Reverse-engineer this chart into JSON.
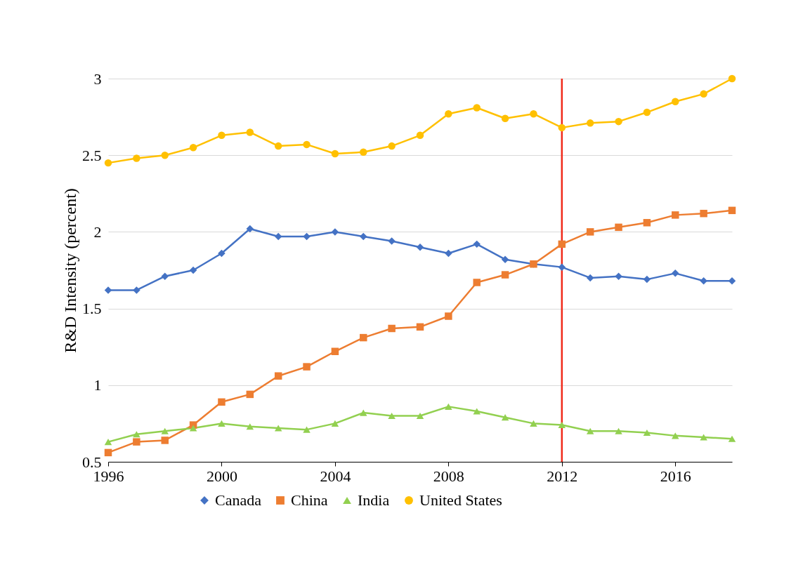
{
  "chart_data": {
    "type": "line",
    "ylabel": "R&D Intensity (percent)",
    "x": [
      1996,
      1997,
      1998,
      1999,
      2000,
      2001,
      2002,
      2003,
      2004,
      2005,
      2006,
      2007,
      2008,
      2009,
      2010,
      2011,
      2012,
      2013,
      2014,
      2015,
      2016,
      2017,
      2018
    ],
    "series": [
      {
        "name": "Canada",
        "color": "#4472c4",
        "marker": "diamond",
        "values": [
          1.62,
          1.62,
          1.71,
          1.75,
          1.86,
          2.02,
          1.97,
          1.97,
          2.0,
          1.97,
          1.94,
          1.9,
          1.86,
          1.92,
          1.82,
          1.79,
          1.77,
          1.7,
          1.71,
          1.69,
          1.73,
          1.68,
          1.68
        ]
      },
      {
        "name": "China",
        "color": "#ed7d31",
        "marker": "square",
        "values": [
          0.56,
          0.63,
          0.64,
          0.74,
          0.89,
          0.94,
          1.06,
          1.12,
          1.22,
          1.31,
          1.37,
          1.38,
          1.45,
          1.67,
          1.72,
          1.79,
          1.92,
          2.0,
          2.03,
          2.06,
          2.11,
          2.12,
          2.14
        ]
      },
      {
        "name": "India",
        "color": "#92d050",
        "marker": "triangle",
        "values": [
          0.63,
          0.68,
          0.7,
          0.72,
          0.75,
          0.73,
          0.72,
          0.71,
          0.75,
          0.82,
          0.8,
          0.8,
          0.86,
          0.83,
          0.79,
          0.75,
          0.74,
          0.7,
          0.7,
          0.69,
          0.67,
          0.66,
          0.65
        ]
      },
      {
        "name": "United States",
        "color": "#ffc000",
        "marker": "circle",
        "values": [
          2.45,
          2.48,
          2.5,
          2.55,
          2.63,
          2.65,
          2.56,
          2.57,
          2.51,
          2.52,
          2.56,
          2.63,
          2.77,
          2.81,
          2.74,
          2.77,
          2.68,
          2.71,
          2.72,
          2.78,
          2.85,
          2.9,
          3.0
        ]
      }
    ],
    "xlim": [
      1996,
      2018
    ],
    "xticks": [
      1996,
      2000,
      2004,
      2008,
      2012,
      2016
    ],
    "ylim": [
      0.5,
      3
    ],
    "yticks": [
      0.5,
      1,
      1.5,
      2,
      2.5,
      3
    ],
    "grid": "y",
    "legend": "bottom",
    "line_style": "solid",
    "ref_lines": [
      {
        "axis": "x",
        "value": 2012,
        "color": "#f02a1a"
      }
    ]
  }
}
